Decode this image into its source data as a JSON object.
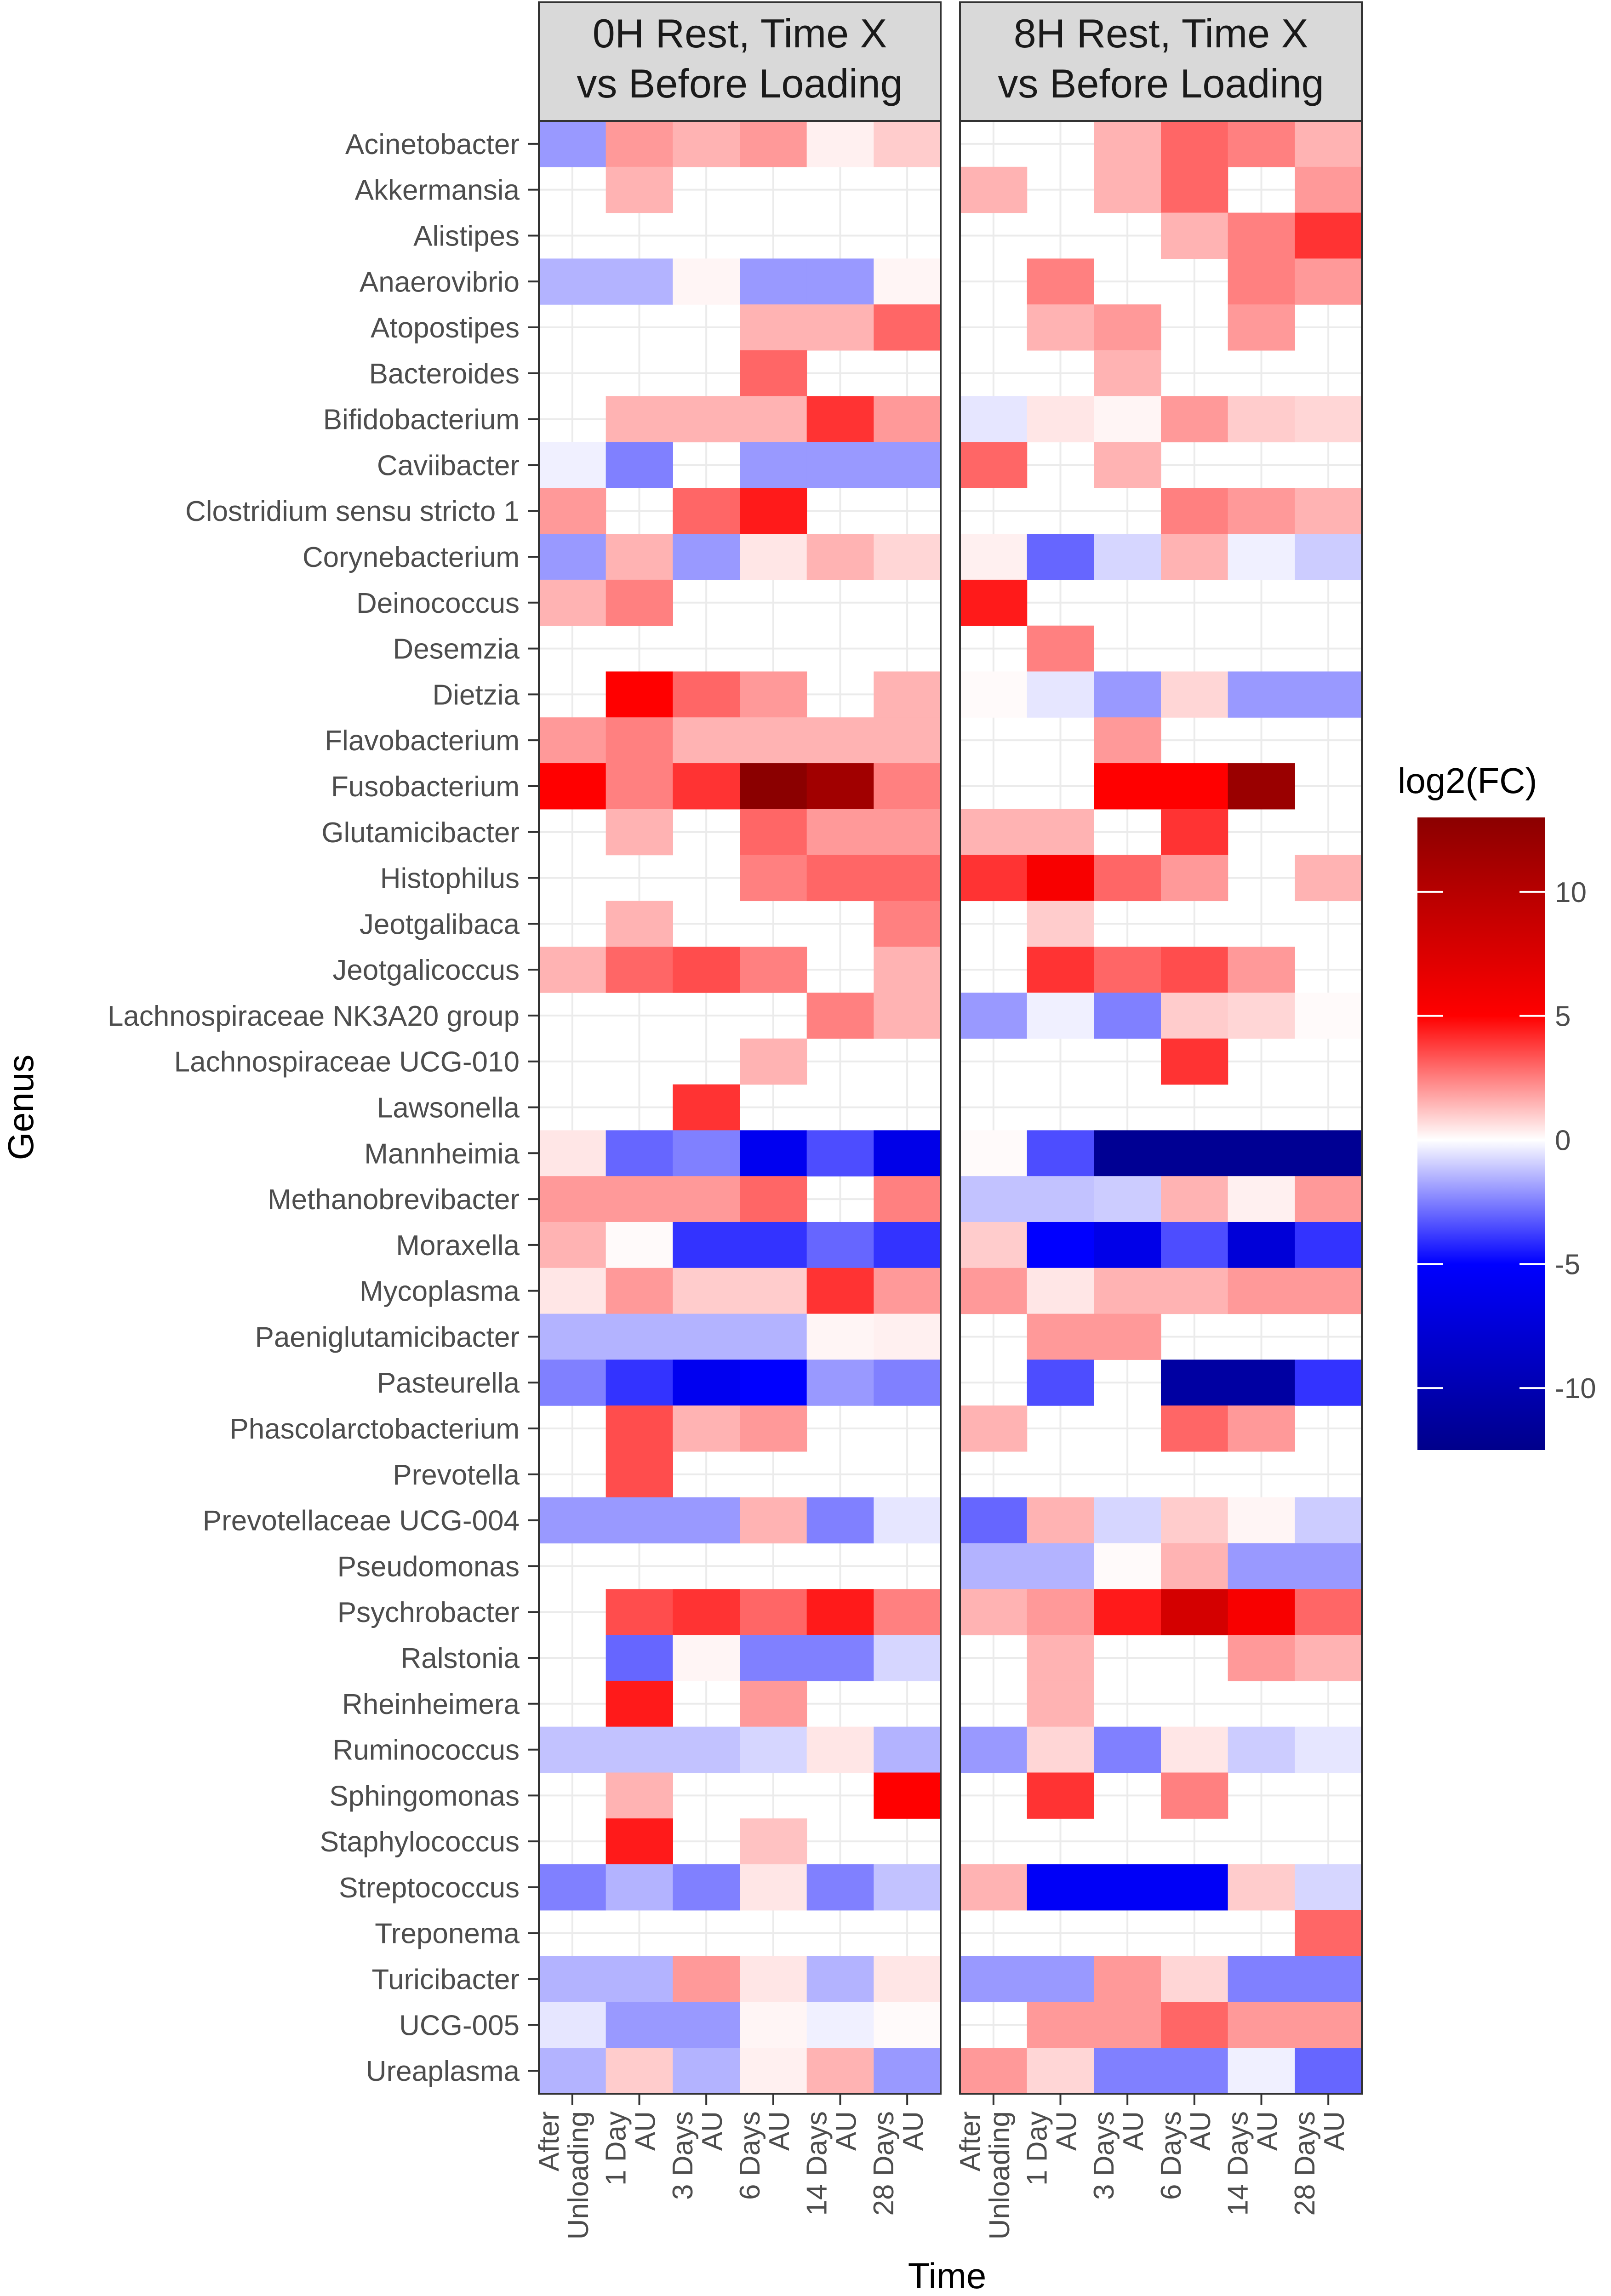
{
  "chart_data": {
    "type": "heatmap",
    "ylabel": "Genus",
    "xlabel": "Time",
    "x_categories": [
      "After Unloading",
      "1 Day AU",
      "3 Days AU",
      "6 Days AU",
      "14 Days AU",
      "28 Days AU"
    ],
    "x_tick_labels": [
      [
        "After",
        "Unloading"
      ],
      [
        "1 Day",
        "AU"
      ],
      [
        "3 Days",
        "AU"
      ],
      [
        "6 Days",
        "AU"
      ],
      [
        "14 Days",
        "AU"
      ],
      [
        "28 Days",
        "AU"
      ]
    ],
    "genera": [
      "Acinetobacter",
      "Akkermansia",
      "Alistipes",
      "Anaerovibrio",
      "Atopostipes",
      "Bacteroides",
      "Bifidobacterium",
      "Caviibacter",
      "Clostridium sensu stricto 1",
      "Corynebacterium",
      "Deinococcus",
      "Desemzia",
      "Dietzia",
      "Flavobacterium",
      "Fusobacterium",
      "Glutamicibacter",
      "Histophilus",
      "Jeotgalibaca",
      "Jeotgalicoccus",
      "Lachnospiraceae NK3A20 group",
      "Lachnospiraceae UCG-010",
      "Lawsonella",
      "Mannheimia",
      "Methanobrevibacter",
      "Moraxella",
      "Mycoplasma",
      "Paeniglutamicibacter",
      "Pasteurella",
      "Phascolarctobacterium",
      "Prevotella",
      "Prevotellaceae UCG-004",
      "Pseudomonas",
      "Psychrobacter",
      "Ralstonia",
      "Rheinheimera",
      "Ruminococcus",
      "Sphingomonas",
      "Staphylococcus",
      "Streptococcus",
      "Treponema",
      "Turicibacter",
      "UCG-005",
      "Ureaplasma"
    ],
    "panels": [
      {
        "title_lines": [
          "0H Rest, Time X",
          "vs Before Loading"
        ],
        "values": [
          [
            -2,
            2,
            1.5,
            2,
            0.3,
            1
          ],
          [
            null,
            1.5,
            null,
            null,
            null,
            null
          ],
          [
            null,
            null,
            null,
            null,
            null,
            null
          ],
          [
            -1.5,
            -1.5,
            0.2,
            -2,
            -2,
            0.2
          ],
          [
            null,
            null,
            null,
            1.5,
            1.5,
            3
          ],
          [
            null,
            null,
            null,
            3,
            null,
            null
          ],
          [
            null,
            1.5,
            1.5,
            1.5,
            4,
            2
          ],
          [
            -0.3,
            -2.5,
            null,
            -2,
            -2,
            -2
          ],
          [
            2,
            null,
            3,
            4.5,
            null,
            null
          ],
          [
            -2,
            1.5,
            -2,
            0.5,
            1.5,
            0.8
          ],
          [
            1.5,
            2.5,
            null,
            null,
            null,
            null
          ],
          [
            null,
            null,
            null,
            null,
            null,
            null
          ],
          [
            null,
            5,
            3,
            2,
            null,
            1.5
          ],
          [
            2,
            2.5,
            1.5,
            1.5,
            1.5,
            1.5
          ],
          [
            5,
            2.5,
            4,
            13,
            11.5,
            2.5
          ],
          [
            null,
            1.5,
            null,
            3,
            2,
            2
          ],
          [
            null,
            null,
            null,
            2.5,
            3,
            3
          ],
          [
            null,
            1.5,
            null,
            null,
            null,
            2.5
          ],
          [
            1.5,
            3,
            3.5,
            2.5,
            null,
            1.5
          ],
          [
            null,
            null,
            null,
            null,
            2.5,
            1.5
          ],
          [
            null,
            null,
            null,
            1.5,
            null,
            null
          ],
          [
            null,
            null,
            4,
            null,
            null,
            null
          ],
          [
            0.5,
            -3,
            -2.5,
            -6,
            -3.5,
            -6.5
          ],
          [
            2,
            2,
            2,
            3,
            null,
            2.5
          ],
          [
            1.5,
            0.1,
            -4,
            -4,
            -3,
            -4
          ],
          [
            0.5,
            2,
            1,
            1,
            4,
            2
          ],
          [
            -1.5,
            -1.5,
            -1.5,
            -1.5,
            0.2,
            0.3
          ],
          [
            -2.5,
            -4,
            -6,
            -5,
            -2,
            -2.5
          ],
          [
            null,
            3.5,
            1.5,
            2,
            null,
            null
          ],
          [
            null,
            3.5,
            null,
            null,
            null,
            null
          ],
          [
            -2,
            -2,
            -2,
            1.5,
            -2.5,
            -0.5
          ],
          [
            null,
            null,
            null,
            null,
            null,
            null
          ],
          [
            null,
            3.5,
            4,
            3,
            4.5,
            2.5
          ],
          [
            null,
            -3,
            0.2,
            -2.5,
            -2.5,
            -0.8
          ],
          [
            null,
            4.5,
            null,
            2,
            null,
            null
          ],
          [
            -1.2,
            -1.2,
            -1.2,
            -0.8,
            0.5,
            -1.5
          ],
          [
            null,
            1.5,
            null,
            null,
            null,
            5
          ],
          [
            null,
            4.5,
            null,
            1.2,
            null,
            null
          ],
          [
            -2.5,
            -1.5,
            -2.5,
            0.5,
            -2.5,
            -1.2
          ],
          [
            null,
            null,
            null,
            null,
            null,
            null
          ],
          [
            -1.5,
            -1.5,
            2,
            0.5,
            -1.5,
            0.5
          ],
          [
            -0.5,
            -2,
            -2,
            0.2,
            -0.3,
            0.1
          ],
          [
            -1.5,
            1,
            -1.5,
            0.3,
            1.5,
            -2
          ]
        ]
      },
      {
        "title_lines": [
          "8H Rest, Time X",
          "vs Before Loading"
        ],
        "values": [
          [
            null,
            null,
            1.5,
            3,
            2.5,
            1.5
          ],
          [
            1.5,
            null,
            1.5,
            3,
            null,
            2
          ],
          [
            null,
            null,
            null,
            1.5,
            2.5,
            4
          ],
          [
            null,
            2.5,
            null,
            null,
            2.5,
            2
          ],
          [
            null,
            1.5,
            2,
            null,
            2,
            null
          ],
          [
            null,
            null,
            1.5,
            null,
            null,
            null
          ],
          [
            -0.5,
            0.5,
            0.2,
            2,
            1,
            0.8
          ],
          [
            3,
            null,
            1.5,
            null,
            null,
            null
          ],
          [
            null,
            null,
            null,
            2.5,
            2,
            1.5
          ],
          [
            0.3,
            -3,
            -0.8,
            1.5,
            -0.3,
            -1
          ],
          [
            4.5,
            null,
            null,
            null,
            null,
            null
          ],
          [
            null,
            2.5,
            null,
            null,
            null,
            null
          ],
          [
            0.1,
            -0.5,
            -2,
            0.8,
            -2,
            -2
          ],
          [
            null,
            null,
            2,
            null,
            null,
            null
          ],
          [
            null,
            null,
            5,
            5,
            12,
            null
          ],
          [
            1.5,
            1.5,
            null,
            4,
            null,
            null
          ],
          [
            4,
            5.5,
            3,
            2,
            null,
            1.5
          ],
          [
            null,
            1,
            null,
            null,
            null,
            null
          ],
          [
            null,
            4,
            3,
            3.5,
            2,
            null
          ],
          [
            -2,
            -0.3,
            -2.5,
            1,
            0.8,
            0.1
          ],
          [
            null,
            null,
            null,
            4,
            null,
            null
          ],
          [
            null,
            null,
            null,
            null,
            null,
            null
          ],
          [
            0.1,
            -3.5,
            -12,
            -12,
            -12,
            -12
          ],
          [
            -1.2,
            -1.2,
            -1,
            1.5,
            0.3,
            2
          ],
          [
            1,
            -5,
            -6.5,
            -3.5,
            -7.5,
            -4
          ],
          [
            2,
            0.5,
            1.5,
            1.5,
            2,
            2
          ],
          [
            null,
            2,
            2,
            null,
            null,
            null
          ],
          [
            null,
            -3.5,
            null,
            -11,
            -11,
            -4
          ],
          [
            1.5,
            null,
            null,
            3,
            2,
            null
          ],
          [
            null,
            null,
            null,
            null,
            null,
            null
          ],
          [
            -3,
            1.5,
            -0.8,
            1,
            0.2,
            -1
          ],
          [
            -1.5,
            -1.5,
            0.1,
            1.5,
            -2,
            -2
          ],
          [
            1.5,
            2,
            4.5,
            8,
            5.5,
            3
          ],
          [
            null,
            1.5,
            null,
            null,
            2,
            1.5
          ],
          [
            null,
            1.5,
            null,
            null,
            null,
            null
          ],
          [
            -2,
            0.8,
            -2.5,
            0.5,
            -1,
            -0.5
          ],
          [
            null,
            4,
            null,
            2.5,
            null,
            null
          ],
          [
            null,
            null,
            null,
            null,
            null,
            null
          ],
          [
            1.5,
            -5.5,
            -5.5,
            -5.5,
            1,
            -0.8
          ],
          [
            null,
            null,
            null,
            null,
            null,
            3
          ],
          [
            -2,
            -2,
            2,
            0.8,
            -2.5,
            -2.5
          ],
          [
            null,
            2,
            2,
            3,
            2,
            2
          ],
          [
            2,
            0.8,
            -2.5,
            -2.5,
            -0.3,
            -3
          ]
        ]
      }
    ],
    "legend": {
      "title": "log2(FC)",
      "ticks": [
        "10",
        "5",
        "0",
        "-5",
        "-10"
      ],
      "tick_values": [
        10,
        5,
        0,
        -5,
        -10
      ],
      "range": [
        -12.5,
        13
      ],
      "colors": {
        "low": "#00008b",
        "mid_low": "#0000ff",
        "mid": "#ffffff",
        "mid_high": "#ff0000",
        "high": "#8b0000"
      },
      "placement": "right"
    }
  }
}
